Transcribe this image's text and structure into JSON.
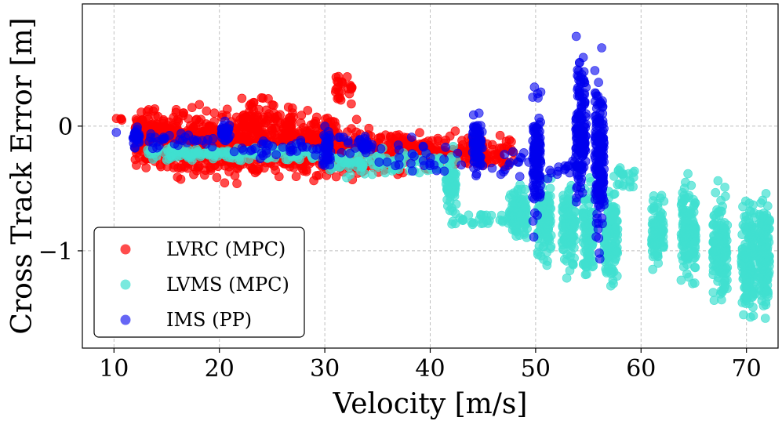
{
  "chart_data": {
    "type": "scatter",
    "title": "",
    "xlabel": "Velocity [m/s]",
    "ylabel": "Cross Track Error [m]",
    "xlim": [
      7,
      73
    ],
    "ylim": [
      -1.78,
      0.98
    ],
    "xticks": [
      10,
      20,
      30,
      40,
      50,
      60,
      70
    ],
    "yticks": [
      0,
      -1
    ],
    "ytick_labels": [
      "0",
      "−1"
    ],
    "grid": true,
    "legend_position": "lower-left",
    "series": [
      {
        "name": "LVRC (MPC)",
        "color": "#ff0000",
        "opacity": 0.7,
        "clusters": [
          {
            "x": [
              10,
              11
            ],
            "y_center": 0.05,
            "y_spread": 0.03,
            "count": 4
          },
          {
            "x": [
              12,
              16
            ],
            "y_center": -0.1,
            "y_spread": 0.35,
            "count": 220
          },
          {
            "x": [
              16,
              22
            ],
            "y_center": -0.15,
            "y_spread": 0.42,
            "count": 300
          },
          {
            "x": [
              22,
              27
            ],
            "y_center": -0.1,
            "y_spread": 0.45,
            "count": 280
          },
          {
            "x": [
              27,
              31
            ],
            "y_center": -0.15,
            "y_spread": 0.42,
            "count": 200
          },
          {
            "x": [
              31,
              33
            ],
            "y_center": 0.3,
            "y_spread": 0.2,
            "count": 25
          },
          {
            "x": [
              31,
              38
            ],
            "y_center": -0.2,
            "y_spread": 0.3,
            "count": 170
          },
          {
            "x": [
              38,
              44
            ],
            "y_center": -0.2,
            "y_spread": 0.2,
            "count": 110
          },
          {
            "x": [
              44,
              48
            ],
            "y_center": -0.2,
            "y_spread": 0.18,
            "count": 60
          }
        ]
      },
      {
        "name": "LVMS (MPC)",
        "color": "#40e0d0",
        "opacity": 0.7,
        "clusters": [
          {
            "x": [
              13,
              30
            ],
            "y_center": -0.22,
            "y_spread": 0.1,
            "count": 160
          },
          {
            "x": [
              30,
              41
            ],
            "y_center": -0.3,
            "y_spread": 0.15,
            "count": 110
          },
          {
            "x": [
              41.5,
              42.5
            ],
            "y_center": -0.45,
            "y_spread": 0.35,
            "count": 60
          },
          {
            "x": [
              42,
              48
            ],
            "y_center": -0.75,
            "y_spread": 0.08,
            "count": 30
          },
          {
            "x": [
              47.5,
              49.2
            ],
            "y_center": -0.7,
            "y_spread": 0.4,
            "count": 90
          },
          {
            "x": [
              50.2,
              51.5
            ],
            "y_center": -0.75,
            "y_spread": 0.5,
            "count": 110
          },
          {
            "x": [
              52.5,
              53.8
            ],
            "y_center": -0.8,
            "y_spread": 0.55,
            "count": 110
          },
          {
            "x": [
              54.5,
              55.5
            ],
            "y_center": -0.85,
            "y_spread": 0.55,
            "count": 100
          },
          {
            "x": [
              56.5,
              57.8
            ],
            "y_center": -0.9,
            "y_spread": 0.6,
            "count": 120
          },
          {
            "x": [
              57.5,
              59.5
            ],
            "y_center": -0.4,
            "y_spread": 0.22,
            "count": 20
          },
          {
            "x": [
              61,
              62.2
            ],
            "y_center": -0.85,
            "y_spread": 0.45,
            "count": 100
          },
          {
            "x": [
              63.8,
              65.2
            ],
            "y_center": -0.85,
            "y_spread": 0.65,
            "count": 130
          },
          {
            "x": [
              66.8,
              68.2
            ],
            "y_center": -1.0,
            "y_spread": 0.65,
            "count": 140
          },
          {
            "x": [
              69.5,
              70.8
            ],
            "y_center": -1.05,
            "y_spread": 0.7,
            "count": 150
          },
          {
            "x": [
              71.2,
              72.2
            ],
            "y_center": -1.0,
            "y_spread": 0.7,
            "count": 150
          }
        ]
      },
      {
        "name": "IMS (PP)",
        "color": "#0000ee",
        "opacity": 0.6,
        "clusters": [
          {
            "x": [
              10,
              10.5
            ],
            "y_center": -0.05,
            "y_spread": 0.02,
            "count": 1
          },
          {
            "x": [
              11.8,
              12.5
            ],
            "y_center": -0.1,
            "y_spread": 0.15,
            "count": 25
          },
          {
            "x": [
              13,
              20
            ],
            "y_center": -0.12,
            "y_spread": 0.12,
            "count": 30
          },
          {
            "x": [
              20.2,
              21
            ],
            "y_center": -0.05,
            "y_spread": 0.13,
            "count": 30
          },
          {
            "x": [
              21,
              29.5
            ],
            "y_center": -0.18,
            "y_spread": 0.12,
            "count": 35
          },
          {
            "x": [
              29.8,
              30.6
            ],
            "y_center": -0.18,
            "y_spread": 0.25,
            "count": 40
          },
          {
            "x": [
              31,
              33.5
            ],
            "y_center": -0.15,
            "y_spread": 0.12,
            "count": 12
          },
          {
            "x": [
              33.5,
              34.5
            ],
            "y_center": -0.15,
            "y_spread": 0.1,
            "count": 20
          },
          {
            "x": [
              35,
              43
            ],
            "y_center": -0.25,
            "y_spread": 0.28,
            "count": 28
          },
          {
            "x": [
              44,
              45
            ],
            "y_center": -0.15,
            "y_spread": 0.42,
            "count": 70
          },
          {
            "x": [
              45,
              49.5
            ],
            "y_center": -0.28,
            "y_spread": 0.22,
            "count": 15
          },
          {
            "x": [
              49.7,
              50.5
            ],
            "y_center": -0.25,
            "y_spread": 0.8,
            "count": 110
          },
          {
            "x": [
              50.5,
              54
            ],
            "y_center": -0.35,
            "y_spread": 0.15,
            "count": 15
          },
          {
            "x": [
              53.8,
              54.8
            ],
            "y_center": 0.0,
            "y_spread": 0.85,
            "count": 160
          },
          {
            "x": [
              55.6,
              56.5
            ],
            "y_center": -0.3,
            "y_spread": 1.05,
            "count": 170
          }
        ]
      }
    ]
  }
}
